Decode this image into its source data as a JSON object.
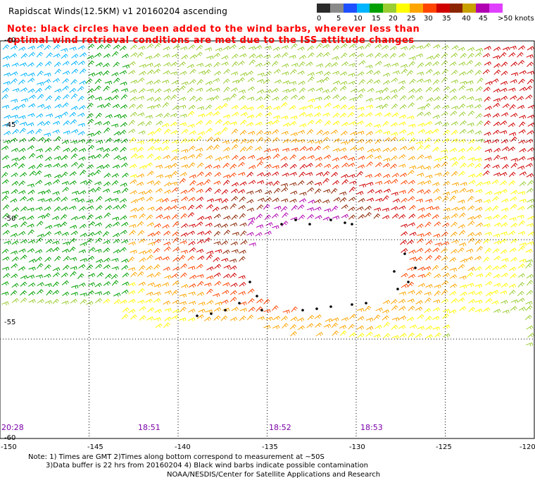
{
  "title": "Rapidscat Winds(12.5KM) v1 20160204 ascending",
  "notes": {
    "line1": "Note: black circles have been added to the wind barbs, wherever less than",
    "line2": "optimal wind retrieval conditions are met due to the ISS attitude changes"
  },
  "legend": {
    "unit_label": ">50 knots",
    "ticks": [
      "0",
      "5",
      "10",
      "15",
      "20",
      "25",
      "30",
      "35",
      "40",
      "45"
    ],
    "colors": [
      "#2b2b2b",
      "#8a8a8a",
      "#1e50ff",
      "#00b4ff",
      "#00a000",
      "#9acd32",
      "#ffff00",
      "#ffa500",
      "#ff4500",
      "#d00000",
      "#8b2500",
      "#c8a000",
      "#b000b0",
      "#e040ff"
    ]
  },
  "axes": {
    "lat_labels": [
      "-40",
      "-45",
      "-50",
      "-55",
      "-60"
    ],
    "lon_labels": [
      "-150",
      "-145",
      "-140",
      "-135",
      "-130",
      "-125",
      "-120"
    ],
    "lat_range": [
      -60,
      -40
    ],
    "lon_range": [
      -150,
      -120
    ]
  },
  "pass_times": [
    "20:28",
    "18:51",
    "18:52",
    "18:53"
  ],
  "footer": {
    "line1": "Note: 1) Times are GMT 2)Times along bottom correspond to measurement at ~50S",
    "line2": "3)Data buffer is 22 hrs from 20160204 4) Black wind barbs indicate possible contamination",
    "line3": "NOAA/NESDIS/Center for Satellite Applications and Research"
  }
}
